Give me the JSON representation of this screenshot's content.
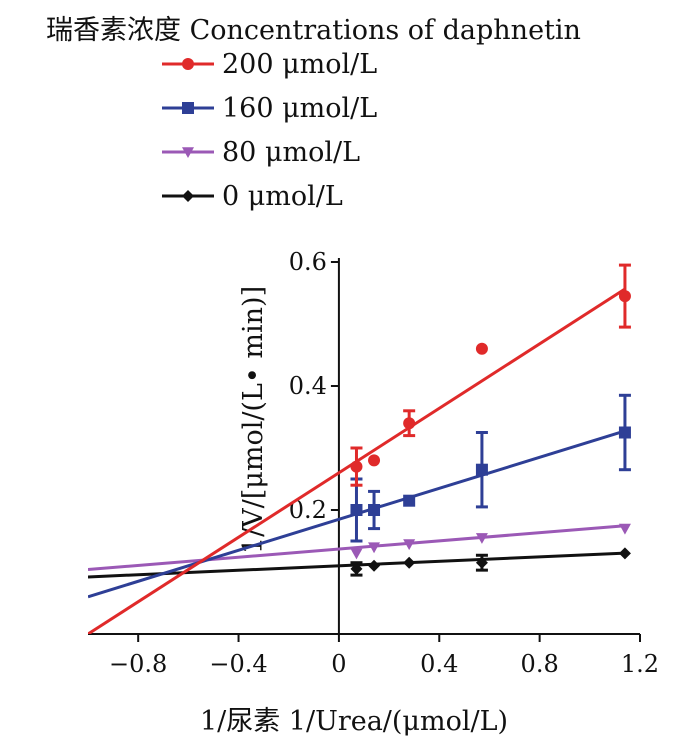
{
  "chart_data": {
    "type": "scatter",
    "legend_title": "瑞香素浓度 Concentrations of daphnetin",
    "legend_placement": "top-left",
    "xlabel": "1/尿素 1/Urea/(μmol/L)",
    "ylabel": "1/V/[μmol/(L• min)]",
    "xlim": [
      -1.0,
      1.2
    ],
    "ylim": [
      0.0,
      0.6
    ],
    "xticks": [
      -0.8,
      -0.4,
      0,
      0.4,
      0.8,
      1.2
    ],
    "xtick_labels": [
      "−0.8",
      "−0.4",
      "0",
      "0.4",
      "0.8",
      "1.2"
    ],
    "yticks": [
      0.2,
      0.4,
      0.6
    ],
    "ytick_labels": [
      "0.2",
      "0.4",
      "0.6"
    ],
    "grid": false,
    "series": [
      {
        "name": "200 μmol/L",
        "color": "#e02a2a",
        "marker": "circle",
        "x": [
          0.07,
          0.14,
          0.28,
          0.57,
          1.14
        ],
        "y": [
          0.27,
          0.28,
          0.34,
          0.46,
          0.545
        ],
        "err": [
          0.03,
          0.0,
          0.02,
          0.0,
          0.05
        ],
        "fit": {
          "slope": 0.26,
          "intercept": 0.26
        }
      },
      {
        "name": "160 μmol/L",
        "color": "#2e3f96",
        "marker": "square",
        "x": [
          0.07,
          0.14,
          0.28,
          0.57,
          1.14
        ],
        "y": [
          0.2,
          0.2,
          0.215,
          0.265,
          0.325
        ],
        "err": [
          0.05,
          0.03,
          0.0,
          0.06,
          0.06
        ],
        "fit": {
          "slope": 0.125,
          "intercept": 0.185
        }
      },
      {
        "name": "80 μmol/L",
        "color": "#9b59b6",
        "marker": "triangle-down",
        "x": [
          0.07,
          0.14,
          0.28,
          0.57,
          1.14
        ],
        "y": [
          0.13,
          0.14,
          0.145,
          0.155,
          0.17
        ],
        "err": [
          0.0,
          0.0,
          0.0,
          0.0,
          0.0
        ],
        "fit": {
          "slope": 0.033,
          "intercept": 0.137
        }
      },
      {
        "name": "0 μmol/L",
        "color": "#111111",
        "marker": "diamond",
        "x": [
          0.07,
          0.14,
          0.28,
          0.57,
          1.14
        ],
        "y": [
          0.105,
          0.11,
          0.115,
          0.115,
          0.13
        ],
        "err": [
          0.01,
          0.0,
          0.0,
          0.012,
          0.0
        ],
        "fit": {
          "slope": 0.018,
          "intercept": 0.11
        }
      }
    ]
  }
}
